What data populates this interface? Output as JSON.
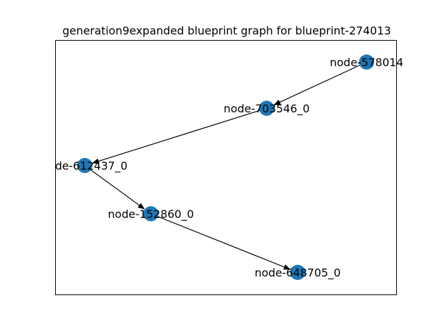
{
  "title": "generation9expanded blueprint graph for blueprint-274013",
  "colors": {
    "node_fill": "#1f77b4",
    "edge": "#000000",
    "frame": "#000000",
    "background": "#ffffff"
  },
  "nodes": [
    {
      "id": "n1",
      "label": "node-578014"
    },
    {
      "id": "n2",
      "label": "node-703546_0"
    },
    {
      "id": "n3",
      "label": "de-612437_0"
    },
    {
      "id": "n4",
      "label": "node-152860_0"
    },
    {
      "id": "n5",
      "label": "node-648705_0"
    }
  ],
  "edges": [
    {
      "from": "n1",
      "to": "n2"
    },
    {
      "from": "n2",
      "to": "n3"
    },
    {
      "from": "n3",
      "to": "n4"
    },
    {
      "from": "n4",
      "to": "n5"
    }
  ]
}
